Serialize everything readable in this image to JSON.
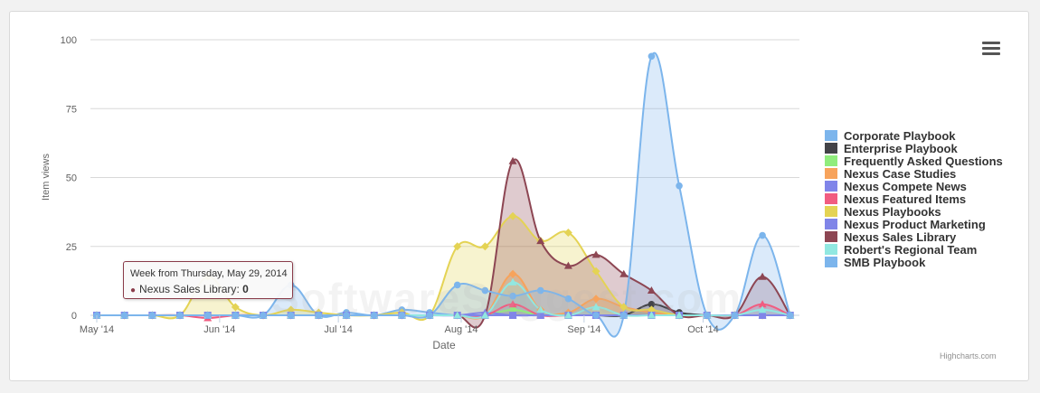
{
  "menu": {
    "label": "Chart context menu"
  },
  "credits": "Highcharts.com",
  "watermark": "SoftwareSuggest.com",
  "tooltip": {
    "header": "Week from Thursday, May 29, 2014",
    "series": "Nexus Sales Library",
    "value": "0"
  },
  "chart_data": {
    "type": "area",
    "title": "",
    "xlabel": "Date",
    "ylabel": "Item views",
    "ylim": [
      0,
      100
    ],
    "yticks": [
      0,
      25,
      50,
      75,
      100
    ],
    "xlim": [
      0,
      25.5
    ],
    "xticks": [
      {
        "label": "May '14",
        "x": 0
      },
      {
        "label": "Jun '14",
        "x": 4.43
      },
      {
        "label": "Jul '14",
        "x": 8.71
      },
      {
        "label": "Aug '14",
        "x": 13.14
      },
      {
        "label": "Sep '14",
        "x": 17.57
      },
      {
        "label": "Oct '14",
        "x": 21.86
      }
    ],
    "x": [
      "May 1, 2014",
      "May 8, 2014",
      "May 15, 2014",
      "May 22, 2014",
      "May 29, 2014",
      "Jun 5, 2014",
      "Jun 12, 2014",
      "Jun 19, 2014",
      "Jun 26, 2014",
      "Jul 3, 2014",
      "Jul 10, 2014",
      "Jul 17, 2014",
      "Jul 24, 2014",
      "Jul 31, 2014",
      "Aug 7, 2014",
      "Aug 14, 2014",
      "Aug 21, 2014",
      "Aug 28, 2014",
      "Sep 4, 2014",
      "Sep 11, 2014",
      "Sep 18, 2014",
      "Sep 25, 2014",
      "Oct 2, 2014",
      "Oct 9, 2014",
      "Oct 16, 2014",
      "Oct 23, 2014"
    ],
    "grid": true,
    "legend_position": "right",
    "series": [
      {
        "name": "Corporate Playbook",
        "color": "#7cb5ec",
        "marker": "circle",
        "values": [
          0,
          0,
          0,
          0,
          0,
          0,
          0,
          11,
          0,
          1,
          0,
          2,
          1,
          0,
          0,
          0,
          0,
          0,
          0,
          0,
          0,
          0,
          0,
          0,
          0,
          0
        ]
      },
      {
        "name": "Enterprise Playbook",
        "color": "#434348",
        "marker": "circle",
        "values": [
          0,
          0,
          0,
          0,
          0,
          0,
          0,
          0,
          0,
          0,
          0,
          0,
          0,
          0,
          0,
          0,
          0,
          0,
          0,
          0,
          4,
          1,
          0,
          0,
          0,
          0
        ]
      },
      {
        "name": "Frequently Asked Questions",
        "color": "#90ed7d",
        "marker": "circle",
        "values": [
          0,
          0,
          0,
          0,
          0,
          0,
          0,
          0,
          0,
          0,
          0,
          0,
          0,
          0,
          0,
          2,
          0,
          0,
          0,
          0,
          0,
          0,
          0,
          0,
          0,
          0
        ]
      },
      {
        "name": "Nexus Case Studies",
        "color": "#f7a35c",
        "marker": "diamond",
        "values": [
          0,
          0,
          0,
          0,
          0,
          0,
          0,
          0,
          0,
          0,
          0,
          0,
          0,
          0,
          0,
          15,
          2,
          1,
          6,
          3,
          1,
          0,
          0,
          0,
          0,
          0
        ]
      },
      {
        "name": "Nexus Compete News",
        "color": "#8085e9",
        "marker": "triangle",
        "values": [
          0,
          0,
          0,
          0,
          0,
          0,
          0,
          0,
          0,
          0,
          0,
          0,
          0,
          0,
          1,
          0,
          0,
          0,
          0,
          0,
          0,
          0,
          0,
          0,
          0,
          0
        ]
      },
      {
        "name": "Nexus Featured Items",
        "color": "#f15c80",
        "marker": "triangle",
        "values": [
          0,
          0,
          0,
          0,
          -1,
          0,
          0,
          0,
          0,
          0,
          0,
          0,
          0,
          0,
          0,
          4,
          0,
          0,
          0,
          0,
          0,
          0,
          0,
          0,
          4,
          0
        ]
      },
      {
        "name": "Nexus Playbooks",
        "color": "#e4d354",
        "marker": "diamond",
        "values": [
          0,
          0,
          0,
          0,
          14,
          3,
          0,
          2,
          1,
          0,
          0,
          1,
          0,
          25,
          25,
          36,
          27,
          30,
          16,
          3,
          2,
          0,
          0,
          0,
          0,
          0
        ]
      },
      {
        "name": "Nexus Product Marketing",
        "color": "#8085e8",
        "marker": "square",
        "values": [
          0,
          0,
          0,
          0,
          0,
          0,
          0,
          0,
          0,
          0,
          0,
          0,
          0,
          0,
          0,
          0,
          0,
          0,
          0,
          0,
          0,
          0,
          0,
          0,
          0,
          0
        ]
      },
      {
        "name": "Nexus Sales Library",
        "color": "#8d4653",
        "marker": "triangle",
        "values": [
          0,
          0,
          0,
          0,
          0,
          0,
          0,
          0,
          0,
          0,
          0,
          0,
          0,
          0,
          0,
          56,
          27,
          18,
          22,
          15,
          9,
          0,
          0,
          0,
          14,
          0
        ]
      },
      {
        "name": "Robert's Regional Team",
        "color": "#91e8e1",
        "marker": "triangle",
        "values": [
          0,
          0,
          0,
          0,
          0,
          0,
          0,
          0,
          0,
          0,
          0,
          0,
          0,
          0,
          0,
          12,
          2,
          0,
          3,
          0,
          0,
          0,
          0,
          0,
          2,
          0
        ]
      },
      {
        "name": "SMB Playbook",
        "color": "#7cb5ec",
        "marker": "circle",
        "values": [
          0,
          0,
          0,
          0,
          0,
          0,
          0,
          0,
          0,
          0,
          0,
          0,
          0,
          11,
          9,
          7,
          9,
          6,
          0,
          0,
          94,
          47,
          0,
          0,
          29,
          0
        ]
      }
    ]
  }
}
